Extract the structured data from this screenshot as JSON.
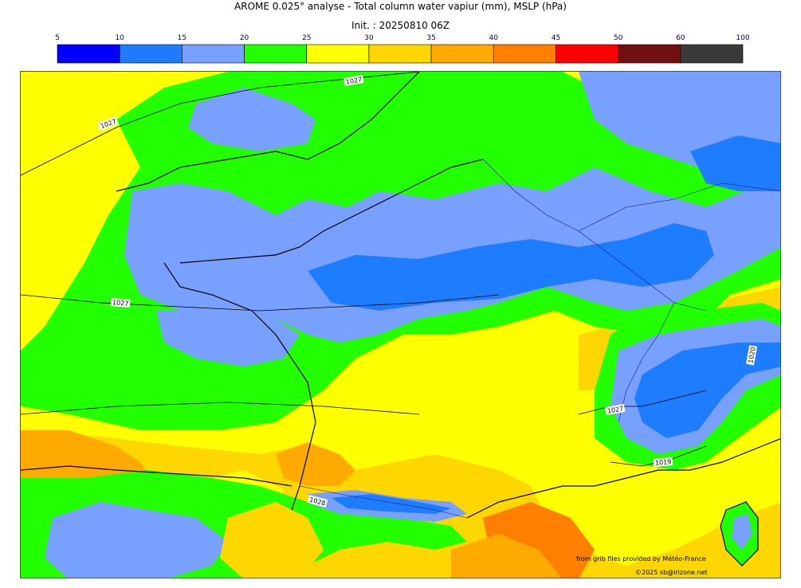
{
  "header": {
    "title": "AROME 0.025° analyse - Total column water vapiur (mm), MSLP (hPa)",
    "init": "Init. : 20250810 06Z"
  },
  "legend": {
    "ticks": [
      "5",
      "10",
      "15",
      "20",
      "25",
      "30",
      "35",
      "40",
      "45",
      "50",
      "60",
      "100"
    ],
    "colors": [
      "#0000ff",
      "#1e7cff",
      "#78a0ff",
      "#22ff00",
      "#ffff00",
      "#ffd700",
      "#ffaa00",
      "#ff8000",
      "#ff0000",
      "#701010",
      "#3a3a3a"
    ],
    "units": "mm"
  },
  "map": {
    "isobar_labels": [
      "1027",
      "1027",
      "1027",
      "1027",
      "1020",
      "1028",
      "1027",
      "1019"
    ],
    "colors": {
      "background_yellow": "#ffff00",
      "green": "#22ff00",
      "light_blue": "#78a0ff",
      "blue": "#1e7cff",
      "gold": "#ffd700",
      "orange": "#ffaa00",
      "dark_orange": "#ff8000"
    }
  },
  "credits": {
    "source": "from grib files provided by Météo-France",
    "copyright": "©2025 sb@irizone.net"
  }
}
